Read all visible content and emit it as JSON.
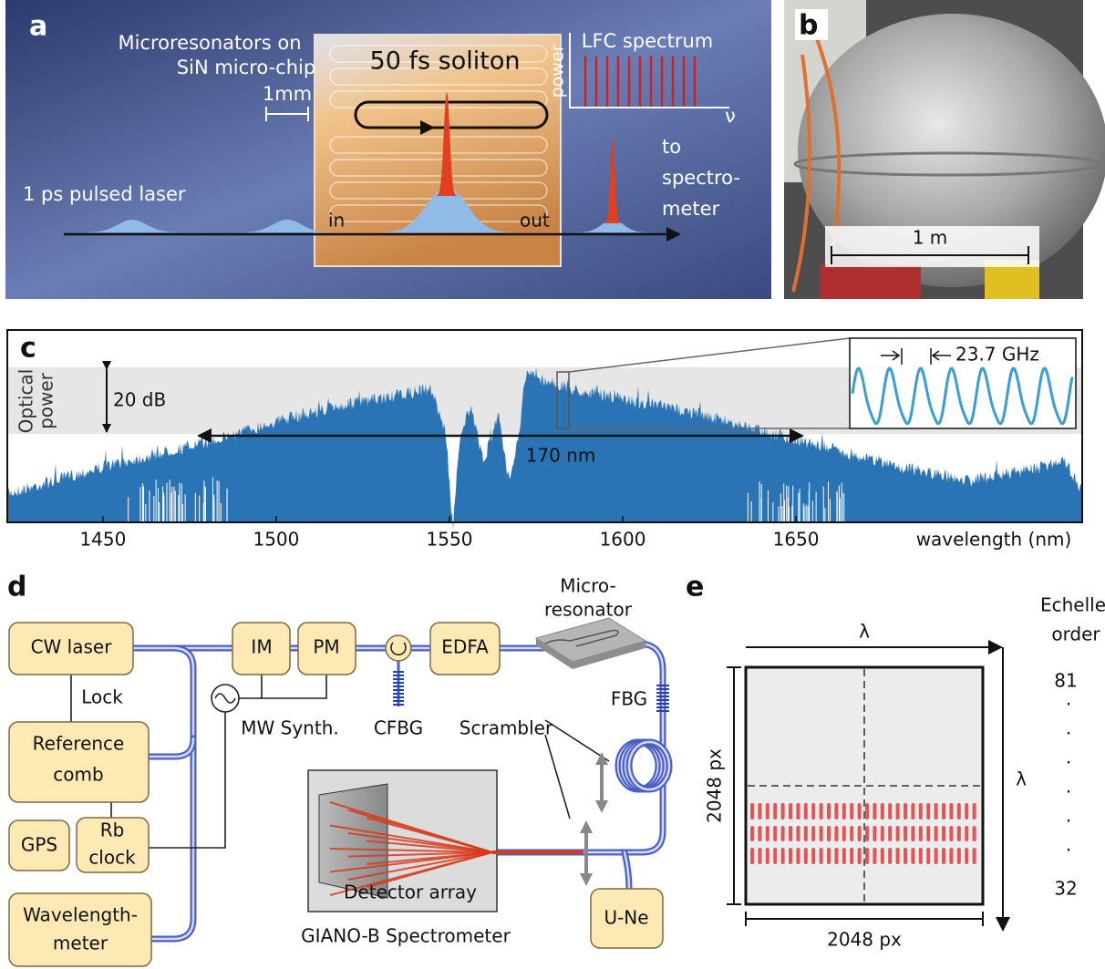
{
  "panel_a": {
    "label": "a",
    "chip_caption": [
      "Microresonators on",
      "SiN micro-chip"
    ],
    "scale": "1mm",
    "soliton": "50 fs soliton",
    "inset_y": "power",
    "inset_title": "LFC spectrum",
    "inset_x": "ν",
    "output": [
      "to",
      "spectro-",
      "meter"
    ],
    "input": "1 ps pulsed laser",
    "in": "in",
    "out": "out"
  },
  "panel_b": {
    "label": "b",
    "scale": "1 m"
  },
  "panel_c": {
    "label": "c",
    "ylabel": [
      "Optical",
      "power"
    ],
    "range": "20 dB",
    "span": "170 nm",
    "spacing": "23.7 GHz",
    "xlim": [
      1422.4,
      1732.6
    ],
    "xticks": [
      1450,
      1500,
      1550,
      1600,
      1650
    ],
    "xlabel": "wavelength (nm)"
  },
  "panel_d": {
    "label": "d",
    "cw_laser": "CW laser",
    "lock": "Lock",
    "reference_comb": [
      "Reference",
      "comb"
    ],
    "gps": "GPS",
    "rb_clock": [
      "Rb",
      "clock"
    ],
    "wavelength_meter": [
      "Wavelength-",
      "meter"
    ],
    "im": "IM",
    "pm": "PM",
    "mw_synth": "MW Synth.",
    "cfbg": "CFBG",
    "edfa": "EDFA",
    "microresonator": [
      "Micro-",
      "resonator"
    ],
    "fbg": "FBG",
    "scrambler": "Scrambler",
    "detector_array": "Detector array",
    "spectrometer": "GIANO-B Spectrometer",
    "u_ne": "U-Ne"
  },
  "panel_e": {
    "label": "e",
    "lambda_x": "λ",
    "lambda_y": "λ",
    "order_title": [
      "Echelle",
      "order"
    ],
    "order_first": "81",
    "order_dots": [
      ".",
      ".",
      ".",
      ".",
      ".",
      "."
    ],
    "order_last": "32",
    "width": "2048 px",
    "height": "2048 px"
  }
}
